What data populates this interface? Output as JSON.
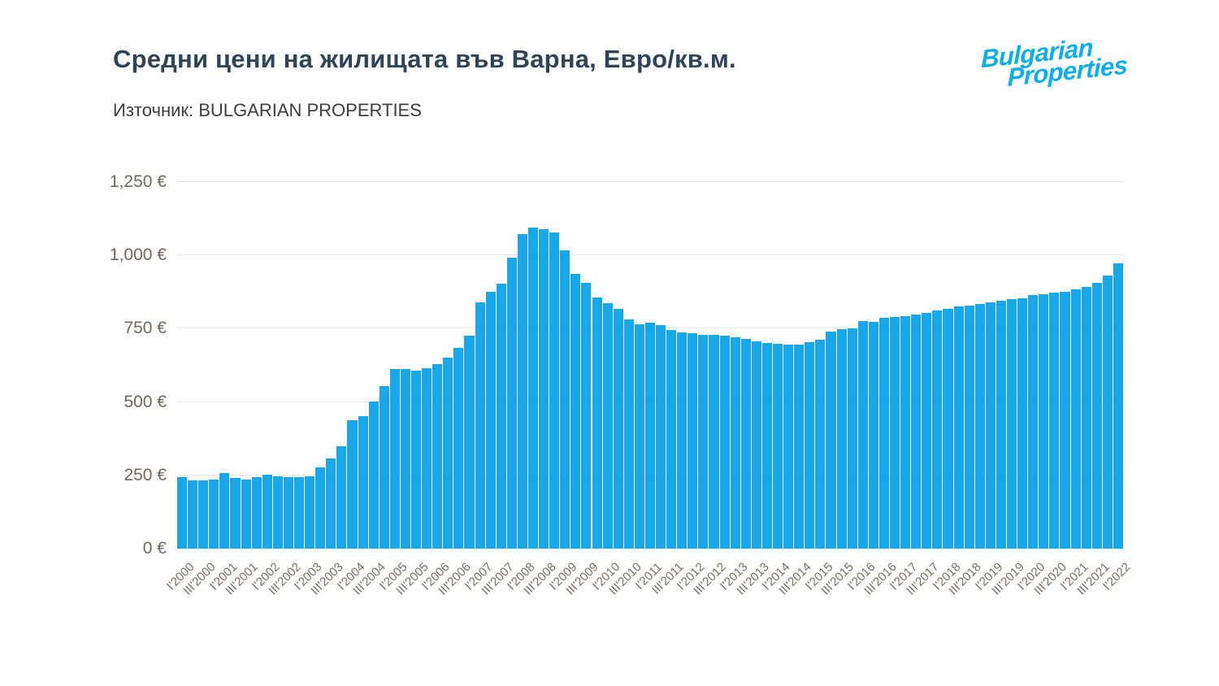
{
  "header": {
    "title": "Средни цени на жилищата във Варна, Евро/кв.м.",
    "source": "Източник: BULGARIAN PROPERTIES",
    "logo": {
      "line1": "Bulgarian",
      "line2": "Properties"
    }
  },
  "colors": {
    "bar": "#19a7ec",
    "logo_blue": "#0badec",
    "title_text": "#2f4457",
    "subtitle_text": "#3e3e3e",
    "axis_text": "#73675c",
    "xaxis_text": "#7b6e62",
    "gridline": "#e8e6e2",
    "background": "#ffffff"
  },
  "chart_data": {
    "type": "bar",
    "title": "Средни цени на жилищата във Варна, Евро/кв.м.",
    "source_note": "Източник: BULGARIAN PROPERTIES",
    "unit": "Евро/кв.м.",
    "grid": true,
    "legend": "none",
    "ylim": [
      0,
      1250
    ],
    "yticks": [
      "0 €",
      "250 €",
      "500 €",
      "750 €",
      "1,000 €",
      "1,250 €"
    ],
    "ytick_values": [
      0,
      250,
      500,
      750,
      1000,
      1250
    ],
    "tick_label_every": 2,
    "visible_tick_labels": [
      "I'2000",
      "III'2000",
      "I'2001",
      "III'2001",
      "I'2002",
      "III'2002",
      "I'2003",
      "III'2003",
      "I'2004",
      "III'2004",
      "I'2005",
      "III'2005",
      "I'2006",
      "III'2006",
      "I'2007",
      "III'2007",
      "I'2008",
      "III'2008",
      "I'2009",
      "III'2009",
      "I'2010",
      "III'2010",
      "I'2011",
      "III'2011",
      "I'2012",
      "III'2012",
      "I'2013",
      "III'2013",
      "I'2014",
      "III'2014",
      "I'2015",
      "III'2015",
      "I'2016",
      "III'2016",
      "I'2017",
      "III'2017",
      "I'2018",
      "III'2018",
      "I'2019",
      "III'2019",
      "I'2020",
      "III'2020",
      "I'2021",
      "III'2021",
      "I'2022"
    ],
    "categories": [
      "I'2000",
      "II'2000",
      "III'2000",
      "IV'2000",
      "I'2001",
      "II'2001",
      "III'2001",
      "IV'2001",
      "I'2002",
      "II'2002",
      "III'2002",
      "IV'2002",
      "I'2003",
      "II'2003",
      "III'2003",
      "IV'2003",
      "I'2004",
      "II'2004",
      "III'2004",
      "IV'2004",
      "I'2005",
      "II'2005",
      "III'2005",
      "IV'2005",
      "I'2006",
      "II'2006",
      "III'2006",
      "IV'2006",
      "I'2007",
      "II'2007",
      "III'2007",
      "IV'2007",
      "I'2008",
      "II'2008",
      "III'2008",
      "IV'2008",
      "I'2009",
      "II'2009",
      "III'2009",
      "IV'2009",
      "I'2010",
      "II'2010",
      "III'2010",
      "IV'2010",
      "I'2011",
      "II'2011",
      "III'2011",
      "IV'2011",
      "I'2012",
      "II'2012",
      "III'2012",
      "IV'2012",
      "I'2013",
      "II'2013",
      "III'2013",
      "IV'2013",
      "I'2014",
      "II'2014",
      "III'2014",
      "IV'2014",
      "I'2015",
      "II'2015",
      "III'2015",
      "IV'2015",
      "I'2016",
      "II'2016",
      "III'2016",
      "IV'2016",
      "I'2017",
      "II'2017",
      "III'2017",
      "IV'2017",
      "I'2018",
      "II'2018",
      "III'2018",
      "IV'2018",
      "I'2019",
      "II'2019",
      "III'2019",
      "IV'2019",
      "I'2020",
      "II'2020",
      "III'2020",
      "IV'2020",
      "I'2021",
      "II'2021",
      "III'2021",
      "IV'2021",
      "I'2022"
    ],
    "values": [
      243,
      234,
      233,
      237,
      258,
      242,
      236,
      245,
      253,
      247,
      244,
      243,
      246,
      277,
      308,
      350,
      439,
      452,
      503,
      554,
      612,
      612,
      608,
      615,
      630,
      650,
      685,
      727,
      840,
      877,
      903,
      991,
      1072,
      1095,
      1090,
      1078,
      1016,
      936,
      905,
      856,
      836,
      817,
      782,
      764,
      771,
      762,
      745,
      736,
      734,
      730,
      730,
      727,
      720,
      714,
      707,
      702,
      699,
      697,
      695,
      705,
      711,
      739,
      748,
      751,
      776,
      774,
      788,
      790,
      793,
      798,
      805,
      811,
      819,
      825,
      829,
      834,
      841,
      845,
      850,
      854,
      864,
      868,
      873,
      877,
      884,
      893,
      905,
      930,
      972
    ]
  }
}
